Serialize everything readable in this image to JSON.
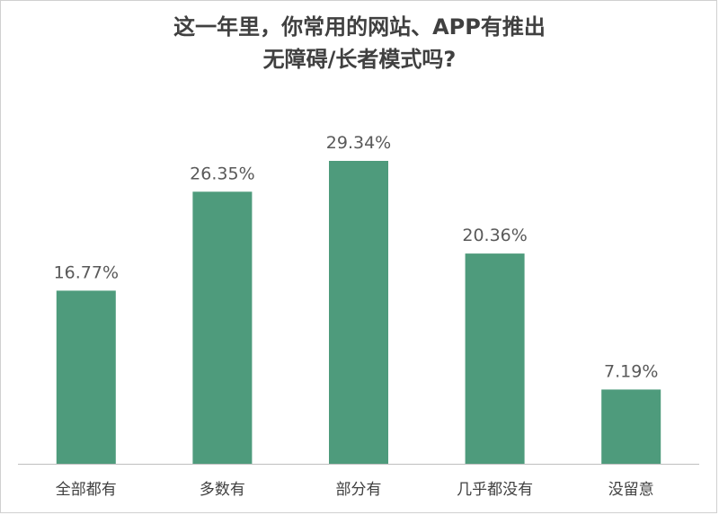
{
  "chart_data": {
    "type": "bar",
    "title_lines": [
      "这一年里，你常用的网站、APP有推出",
      "无障碍/长者模式吗?"
    ],
    "categories": [
      "全部都有",
      "多数有",
      "部分有",
      "几乎都没有",
      "没留意"
    ],
    "values": [
      16.77,
      26.35,
      29.34,
      20.36,
      7.19
    ],
    "value_labels": [
      "16.77%",
      "26.35%",
      "29.34%",
      "20.36%",
      "7.19%"
    ],
    "ylim": [
      0,
      35
    ],
    "grid": false,
    "bar_color": "#4e9b7c",
    "axis_color": "#bfbfbf"
  }
}
